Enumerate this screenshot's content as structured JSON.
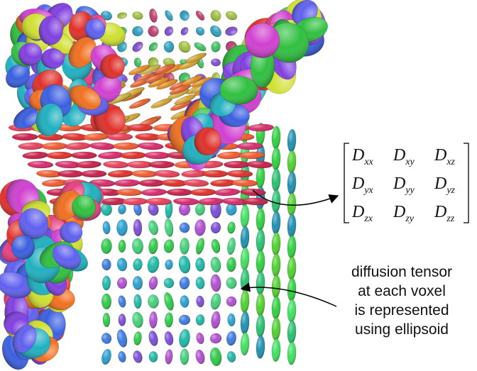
{
  "matrix": {
    "rows": [
      [
        {
          "symbol": "D",
          "subscript": "xx"
        },
        {
          "symbol": "D",
          "subscript": "xy"
        },
        {
          "symbol": "D",
          "subscript": "xz"
        }
      ],
      [
        {
          "symbol": "D",
          "subscript": "yx"
        },
        {
          "symbol": "D",
          "subscript": "yy"
        },
        {
          "symbol": "D",
          "subscript": "yz"
        }
      ],
      [
        {
          "symbol": "D",
          "subscript": "zx"
        },
        {
          "symbol": "D",
          "subscript": "zy"
        },
        {
          "symbol": "D",
          "subscript": "zz"
        }
      ]
    ]
  },
  "annotation": {
    "lines": [
      "diffusion tensor",
      "at each voxel",
      "is represented",
      "using ellipsoid"
    ]
  }
}
